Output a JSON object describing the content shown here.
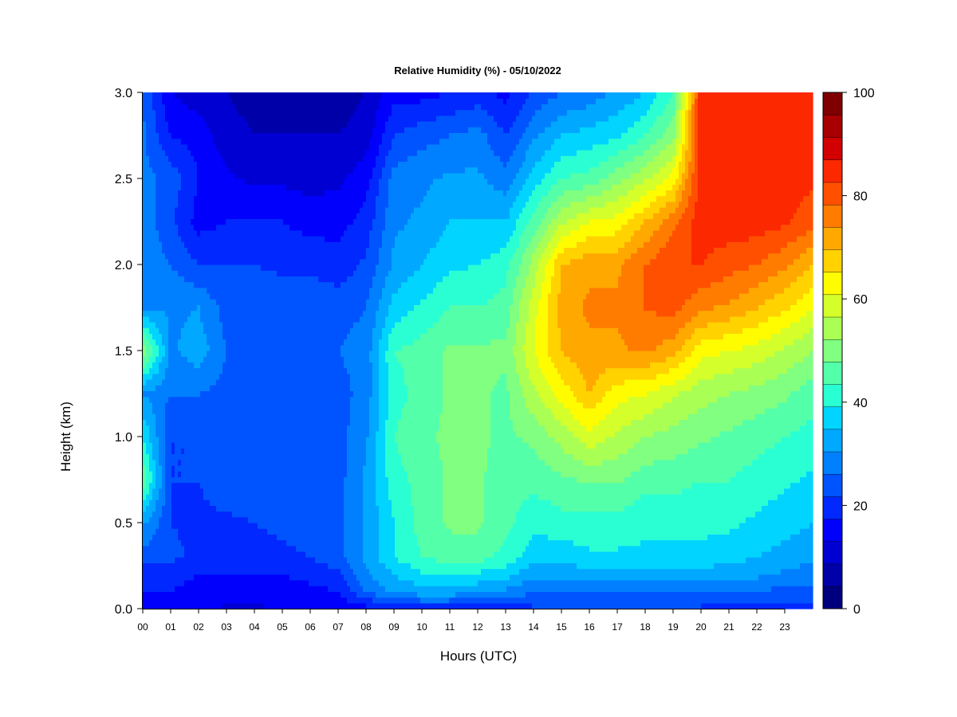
{
  "chart_data": {
    "type": "heatmap",
    "title": "Relative Humidity (%) - 05/10/2022",
    "xlabel": "Hours (UTC)",
    "ylabel": "Height (km)",
    "xlim": [
      0,
      24
    ],
    "ylim": [
      0.0,
      3.0
    ],
    "x_ticks": [
      "00",
      "01",
      "02",
      "03",
      "04",
      "05",
      "06",
      "07",
      "08",
      "09",
      "10",
      "11",
      "12",
      "13",
      "14",
      "15",
      "16",
      "17",
      "18",
      "19",
      "20",
      "21",
      "22",
      "23"
    ],
    "y_ticks": [
      "0.0",
      "0.5",
      "1.0",
      "1.5",
      "2.0",
      "2.5",
      "3.0"
    ],
    "colorbar": {
      "range": [
        0,
        100
      ],
      "step": 5,
      "tick_labels": [
        "0",
        "20",
        "40",
        "60",
        "80",
        "100"
      ],
      "colors": [
        "#00007F",
        "#0000A8",
        "#0000D2",
        "#0000FC",
        "#0028FF",
        "#0054FF",
        "#0080FF",
        "#00A8FF",
        "#00D4FF",
        "#2AFFD4",
        "#54FFAA",
        "#80FF80",
        "#AAFF54",
        "#D4FF2A",
        "#FFFC00",
        "#FFD200",
        "#FFA800",
        "#FF7C00",
        "#FF5000",
        "#FC2800",
        "#D20000",
        "#A80000",
        "#7F0000"
      ]
    },
    "grid": false,
    "hour_columns": [
      0,
      1,
      2,
      3,
      4,
      5,
      6,
      7,
      8,
      9,
      10,
      11,
      12,
      13,
      14,
      15,
      16,
      17,
      18,
      19,
      20,
      21,
      22,
      23,
      24
    ],
    "height_rows_km": [
      0.0,
      0.1,
      0.2,
      0.3,
      0.5,
      0.75,
      1.0,
      1.25,
      1.5,
      1.75,
      2.0,
      2.25,
      2.5,
      2.75,
      3.0
    ],
    "rh_percent": [
      [
        18,
        20,
        22,
        28,
        36,
        55,
        45,
        35,
        60,
        35,
        34,
        33,
        32,
        31,
        30
      ],
      [
        18,
        20,
        22,
        26,
        25,
        25,
        25,
        30,
        34,
        34,
        30,
        26,
        28,
        20,
        15
      ],
      [
        16,
        18,
        20,
        24,
        24,
        25,
        25,
        30,
        38,
        35,
        25,
        18,
        20,
        18,
        12
      ],
      [
        14,
        18,
        20,
        22,
        24,
        28,
        28,
        28,
        30,
        28,
        25,
        20,
        16,
        12,
        10
      ],
      [
        14,
        18,
        20,
        23,
        25,
        28,
        28,
        28,
        30,
        28,
        25,
        20,
        14,
        10,
        8
      ],
      [
        15,
        18,
        20,
        24,
        26,
        28,
        28,
        28,
        30,
        28,
        24,
        20,
        14,
        10,
        8
      ],
      [
        15,
        18,
        22,
        25,
        27,
        28,
        28,
        28,
        30,
        28,
        24,
        18,
        13,
        10,
        8
      ],
      [
        16,
        20,
        24,
        28,
        28,
        28,
        28,
        28,
        30,
        28,
        22,
        18,
        14,
        10,
        8
      ],
      [
        18,
        30,
        34,
        36,
        36,
        36,
        34,
        32,
        32,
        30,
        26,
        22,
        18,
        12,
        10
      ],
      [
        22,
        36,
        40,
        45,
        45,
        48,
        50,
        48,
        50,
        42,
        36,
        34,
        32,
        25,
        18
      ],
      [
        22,
        38,
        44,
        50,
        52,
        52,
        54,
        52,
        52,
        46,
        40,
        36,
        34,
        28,
        18
      ],
      [
        22,
        38,
        46,
        52,
        56,
        56,
        56,
        56,
        56,
        50,
        44,
        40,
        36,
        30,
        20
      ],
      [
        22,
        36,
        44,
        52,
        56,
        56,
        56,
        56,
        56,
        50,
        45,
        40,
        36,
        32,
        22
      ],
      [
        22,
        34,
        42,
        48,
        52,
        52,
        54,
        54,
        56,
        52,
        48,
        40,
        32,
        25,
        18
      ],
      [
        24,
        30,
        36,
        42,
        46,
        52,
        56,
        64,
        70,
        68,
        62,
        52,
        42,
        34,
        26
      ],
      [
        24,
        30,
        36,
        42,
        48,
        54,
        62,
        72,
        80,
        82,
        80,
        64,
        50,
        40,
        30
      ],
      [
        24,
        30,
        38,
        44,
        48,
        56,
        68,
        80,
        84,
        86,
        84,
        70,
        52,
        42,
        32
      ],
      [
        24,
        30,
        38,
        44,
        48,
        56,
        64,
        72,
        84,
        86,
        84,
        72,
        58,
        44,
        36
      ],
      [
        24,
        30,
        38,
        44,
        46,
        52,
        60,
        70,
        86,
        90,
        90,
        80,
        64,
        50,
        40
      ],
      [
        24,
        30,
        38,
        44,
        46,
        52,
        58,
        66,
        82,
        92,
        95,
        88,
        72,
        58,
        50
      ],
      [
        24,
        30,
        38,
        44,
        46,
        50,
        56,
        62,
        72,
        86,
        95,
        98,
        98,
        98,
        98
      ],
      [
        22,
        30,
        36,
        42,
        46,
        50,
        54,
        60,
        70,
        84,
        92,
        98,
        98,
        98,
        98
      ],
      [
        22,
        30,
        36,
        40,
        44,
        48,
        52,
        58,
        68,
        80,
        90,
        98,
        98,
        98,
        98
      ],
      [
        22,
        28,
        34,
        38,
        42,
        46,
        50,
        56,
        64,
        76,
        86,
        96,
        98,
        98,
        98
      ],
      [
        22,
        28,
        32,
        36,
        40,
        44,
        48,
        52,
        60,
        70,
        80,
        92,
        96,
        96,
        96
      ]
    ]
  }
}
